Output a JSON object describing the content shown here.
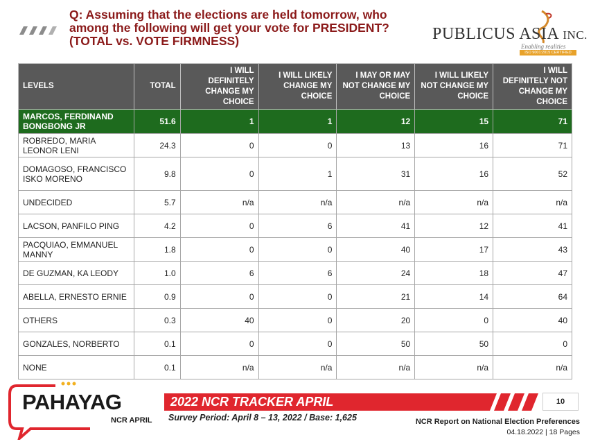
{
  "question": {
    "line1": "Q: Assuming that the elections are held tomorrow, who",
    "line2": "among the following will get your vote for PRESIDENT?",
    "line3": "(TOTAL vs. VOTE FIRMNESS)"
  },
  "logo": {
    "name": "PUBLICUS ASIA",
    "suffix": "INC.",
    "tagline": "Enabling realities",
    "certification": "ISO 9001:2015 CERTIFIED"
  },
  "table": {
    "headers": [
      "LEVELS",
      "TOTAL",
      "I WILL DEFINITELY CHANGE MY CHOICE",
      "I WILL LIKELY CHANGE MY CHOICE",
      "I MAY OR MAY NOT CHANGE MY CHOICE",
      "I WILL LIKELY NOT CHANGE MY CHOICE",
      "I WILL DEFINITELY NOT CHANGE MY CHOICE"
    ],
    "rows": [
      {
        "level": "MARCOS, FERDINAND BONGBONG JR",
        "total": "51.6",
        "def_change": "1",
        "likely_change": "1",
        "may_or_may_not": "12",
        "likely_not": "15",
        "def_not": "71"
      },
      {
        "level": "ROBREDO, MARIA LEONOR LENI",
        "total": "24.3",
        "def_change": "0",
        "likely_change": "0",
        "may_or_may_not": "13",
        "likely_not": "16",
        "def_not": "71"
      },
      {
        "level": "DOMAGOSO, FRANCISCO ISKO MORENO",
        "total": "9.8",
        "def_change": "0",
        "likely_change": "1",
        "may_or_may_not": "31",
        "likely_not": "16",
        "def_not": "52"
      },
      {
        "level": "UNDECIDED",
        "total": "5.7",
        "def_change": "n/a",
        "likely_change": "n/a",
        "may_or_may_not": "n/a",
        "likely_not": "n/a",
        "def_not": "n/a"
      },
      {
        "level": "LACSON, PANFILO PING",
        "total": "4.2",
        "def_change": "0",
        "likely_change": "6",
        "may_or_may_not": "41",
        "likely_not": "12",
        "def_not": "41"
      },
      {
        "level": "PACQUIAO, EMMANUEL MANNY",
        "total": "1.8",
        "def_change": "0",
        "likely_change": "0",
        "may_or_may_not": "40",
        "likely_not": "17",
        "def_not": "43"
      },
      {
        "level": "DE GUZMAN, KA LEODY",
        "total": "1.0",
        "def_change": "6",
        "likely_change": "6",
        "may_or_may_not": "24",
        "likely_not": "18",
        "def_not": "47"
      },
      {
        "level": "ABELLA, ERNESTO ERNIE",
        "total": "0.9",
        "def_change": "0",
        "likely_change": "0",
        "may_or_may_not": "21",
        "likely_not": "14",
        "def_not": "64"
      },
      {
        "level": "OTHERS",
        "total": "0.3",
        "def_change": "40",
        "likely_change": "0",
        "may_or_may_not": "20",
        "likely_not": "0",
        "def_not": "40"
      },
      {
        "level": "GONZALES, NORBERTO",
        "total": "0.1",
        "def_change": "0",
        "likely_change": "0",
        "may_or_may_not": "50",
        "likely_not": "50",
        "def_not": "0"
      },
      {
        "level": "NONE",
        "total": "0.1",
        "def_change": "n/a",
        "likely_change": "n/a",
        "may_or_may_not": "n/a",
        "likely_not": "n/a",
        "def_not": "n/a"
      }
    ]
  },
  "footer": {
    "brand": "PAHAYAG",
    "brand_sub": "NCR APRIL",
    "tracker": "2022 NCR TRACKER APRIL",
    "page_number": "10",
    "survey": "Survey Period: April 8 – 13, 2022 / Base: 1,625",
    "report_title": "NCR Report on National Election Preferences",
    "report_date": "04.18.2022 | 18 Pages"
  },
  "colors": {
    "title": "#8b1a1a",
    "header_bg": "#595959",
    "highlight_row": "#1e6b1e",
    "accent_red": "#e0262e"
  }
}
